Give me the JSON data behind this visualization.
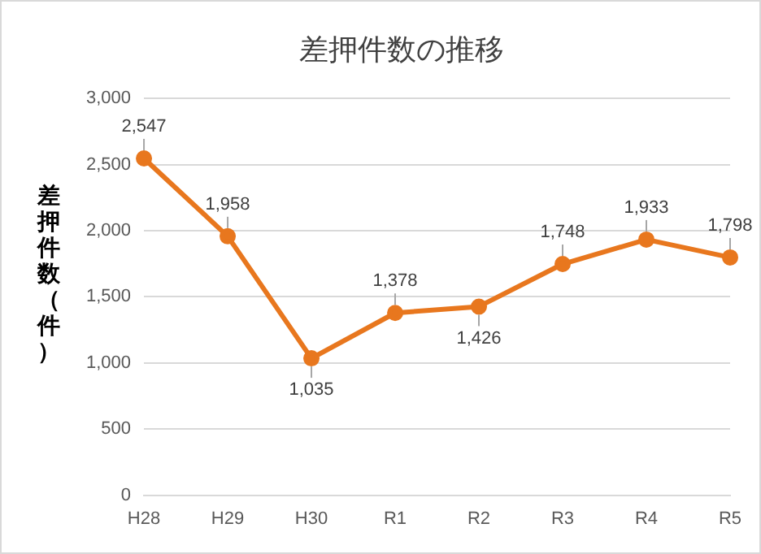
{
  "chart_data": {
    "type": "line",
    "title": "差押件数の推移",
    "ylabel": "差押件数（件）",
    "categories": [
      "H28",
      "H29",
      "H30",
      "R1",
      "R2",
      "R3",
      "R4",
      "R5"
    ],
    "series": [
      {
        "color": "#e8771e",
        "values": [
          2547,
          1958,
          1035,
          1378,
          1426,
          1748,
          1933,
          1798
        ],
        "value_labels": [
          "2,547",
          "1,958",
          "1,035",
          "1,378",
          "1,426",
          "1,748",
          "1,933",
          "1,798"
        ]
      }
    ],
    "ylim": [
      0,
      3000
    ],
    "yticks": [
      0,
      500,
      {
        "value": 1000,
        "label": "1,000"
      },
      {
        "value": 1500,
        "label": "1,500"
      },
      {
        "value": 2000,
        "label": "2,000"
      },
      {
        "value": 2500,
        "label": "2,500"
      },
      {
        "value": 3000,
        "label": "3,000"
      }
    ],
    "grid": "y",
    "legend": false,
    "marker": "circle",
    "line_style": "solid"
  }
}
